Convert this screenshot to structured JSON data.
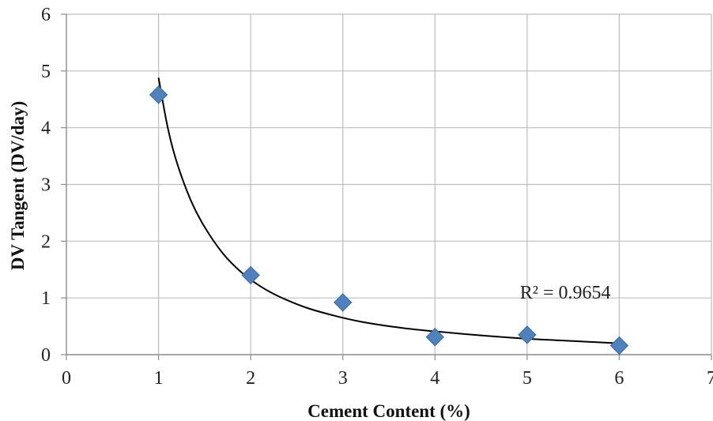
{
  "chart_data": {
    "type": "scatter",
    "title": "",
    "xlabel": "Cement Content (%)",
    "ylabel": "DV Tangent (DV/day)",
    "xlim": [
      0,
      7
    ],
    "ylim": [
      0,
      6
    ],
    "xticks": [
      "0",
      "1",
      "2",
      "3",
      "4",
      "5",
      "6",
      "7"
    ],
    "yticks": [
      "0",
      "1",
      "2",
      "3",
      "4",
      "5",
      "6"
    ],
    "grid": true,
    "series": [
      {
        "x": [
          1,
          2,
          3,
          4,
          5,
          6
        ],
        "values": [
          4.58,
          1.4,
          0.92,
          0.31,
          0.35,
          0.16
        ],
        "marker": "diamond",
        "color": "#4F81BD"
      }
    ],
    "trendline": {
      "x": [
        1.0,
        1.1,
        1.2,
        1.35,
        1.5,
        1.7,
        1.9,
        2.1,
        2.3,
        2.6,
        2.9,
        3.2,
        3.6,
        4.0,
        4.5,
        5.0,
        5.5,
        6.0
      ],
      "values": [
        4.88,
        4.0,
        3.38,
        2.72,
        2.25,
        1.78,
        1.45,
        1.21,
        1.03,
        0.83,
        0.69,
        0.58,
        0.48,
        0.41,
        0.34,
        0.28,
        0.24,
        0.2
      ],
      "color": "#000000"
    },
    "annotations": [
      {
        "text": "R² = 0.9654",
        "x": 5.5,
        "y": 1.1
      }
    ]
  }
}
